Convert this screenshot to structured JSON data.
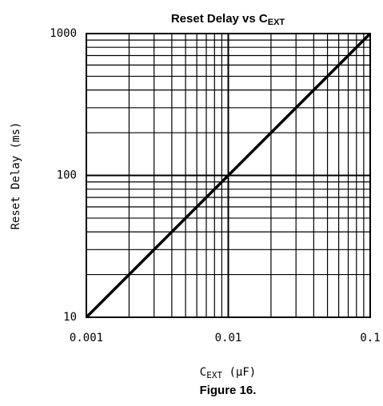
{
  "chart_data": {
    "type": "line",
    "title_parts": [
      {
        "text": "Reset Delay vs C"
      },
      {
        "text": "EXT",
        "sub": true
      }
    ],
    "xlabel_parts": [
      {
        "text": "C"
      },
      {
        "text": "EXT",
        "sub": true
      },
      {
        "text": " (µF)"
      }
    ],
    "ylabel": "Reset Delay (ms)",
    "caption": "Figure 16.",
    "x": [
      0.001,
      0.01,
      0.1
    ],
    "series": [
      {
        "name": "Reset Delay",
        "color": "#000000",
        "values": [
          10,
          100,
          1000
        ]
      }
    ],
    "xscale": "log",
    "yscale": "log",
    "xlim": [
      0.001,
      0.1
    ],
    "ylim": [
      10,
      1000
    ],
    "xticks": [
      0.001,
      0.01,
      0.1
    ],
    "yticks": [
      10,
      100,
      1000
    ],
    "xminor_ticks": [
      0.002,
      0.003,
      0.004,
      0.005,
      0.006,
      0.007,
      0.008,
      0.009,
      0.02,
      0.03,
      0.04,
      0.05,
      0.06,
      0.07,
      0.08,
      0.09
    ],
    "yminor_ticks": [
      20,
      30,
      40,
      50,
      60,
      70,
      80,
      90,
      200,
      300,
      400,
      500,
      600,
      700,
      800,
      900
    ],
    "grid": true
  }
}
